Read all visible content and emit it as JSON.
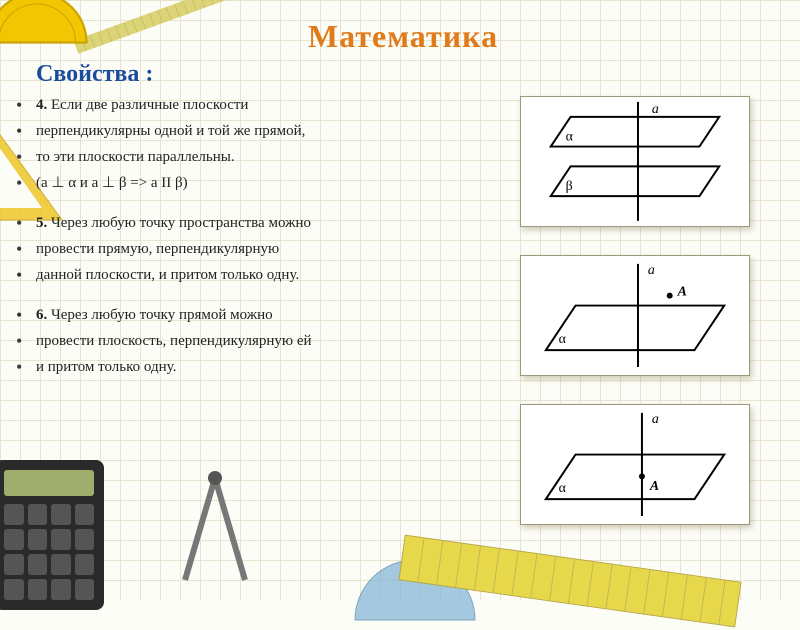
{
  "title": {
    "text": "Математика",
    "color": "#e07b1a",
    "fontsize": 32
  },
  "subheading": {
    "text": "Свойства :",
    "color": "#1a4b9c",
    "fontsize": 24
  },
  "body_fontsize": 15,
  "body_color": "#222222",
  "background_grid_color": "#e8e4d0",
  "page_background": "#fdfdf8",
  "properties": [
    "4.  Если две различные плоскости",
    "перпендикулярны одной и той же прямой,",
    " то эти плоскости параллельны.",
    "(a ⊥  α и a ⊥  β => a II β)",
    "",
    "5.  Через любую точку пространства можно",
    "провести прямую, перпендикулярную",
    "данной плоскости, и  притом только одну.",
    "",
    "6.  Через любую точку прямой можно",
    "провести плоскость, перпендикулярную ей",
    " и притом только одну."
  ],
  "figures": {
    "frame_border": "#9a9a7a",
    "frame_bg": "#ffffff",
    "stroke": "#000000",
    "stroke_width": 2,
    "fig1": {
      "type": "two-parallel-planes-with-line",
      "labels": {
        "line": "a",
        "plane_top": "α",
        "plane_bottom": "β"
      }
    },
    "fig2": {
      "type": "plane-with-perpendicular-through-point",
      "labels": {
        "line": "a",
        "point": "A",
        "plane": "α"
      }
    },
    "fig3": {
      "type": "plane-perpendicular-to-line-at-point",
      "labels": {
        "line": "a",
        "point": "A",
        "plane": "α"
      }
    }
  },
  "decorations": {
    "protractor_color": "#f2c600",
    "ruler_color": "#e6d84a",
    "triangle_color": "#efc62a",
    "calculator_body": "#2a2a2a",
    "calculator_screen": "#9ead6b"
  }
}
